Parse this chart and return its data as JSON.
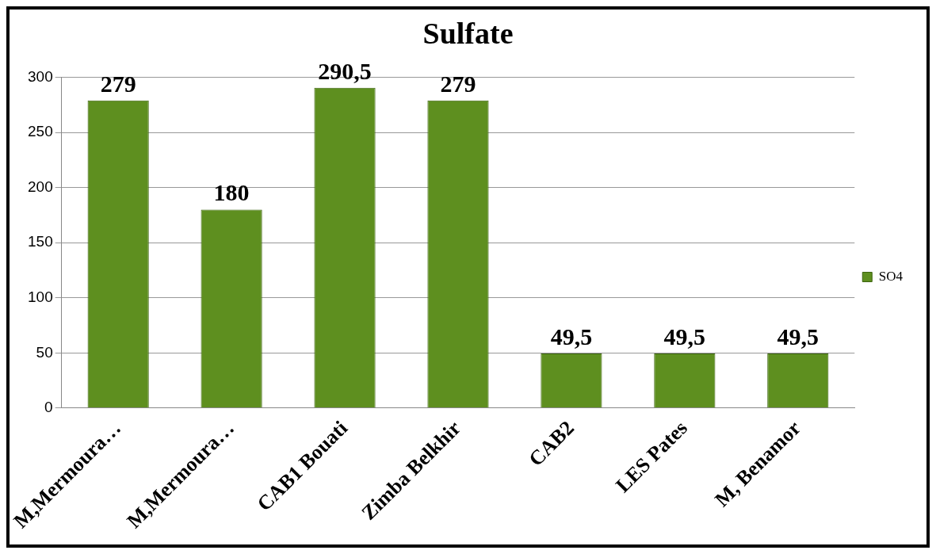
{
  "chart_data": {
    "type": "bar",
    "title": "Sulfate",
    "categories": [
      "M,Mermoura…",
      "M,Mermoura…",
      "CAB1 Bouati",
      "Zimba Belkhir",
      "CAB2",
      "LES Pates",
      "M, Benamor"
    ],
    "series": [
      {
        "name": "SO4",
        "color": "#5e8f1f",
        "values": [
          279,
          180,
          290.5,
          279,
          49.5,
          49.5,
          49.5
        ],
        "value_labels": [
          "279",
          "180",
          "290,5",
          "279",
          "49,5",
          "49,5",
          "49,5"
        ]
      }
    ],
    "ylim": [
      0,
      300
    ],
    "yticks": [
      0,
      50,
      100,
      150,
      200,
      250,
      300
    ],
    "grid": "y",
    "legend": "right"
  }
}
